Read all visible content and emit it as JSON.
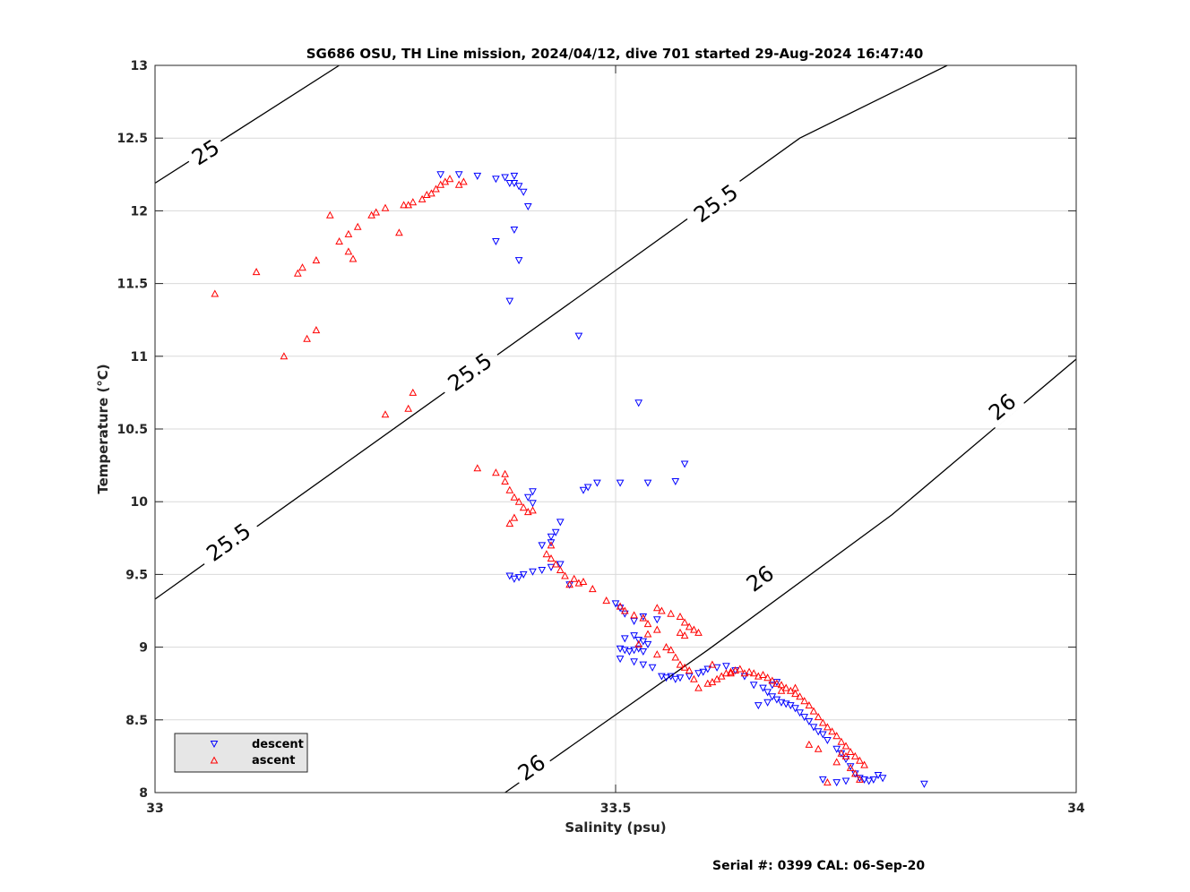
{
  "chart_data": {
    "type": "scatter",
    "title": "SG686 OSU, TH Line mission, 2024/04/12, dive 701 started 29-Aug-2024 16:47:40",
    "xlabel": "Salinity (psu)",
    "ylabel": "Temperature (°C)",
    "xlim": [
      33,
      34
    ],
    "ylim": [
      8,
      13
    ],
    "xticks": [
      33,
      33.5,
      34
    ],
    "xtick_labels": [
      "33",
      "33.5",
      "34"
    ],
    "yticks": [
      8,
      8.5,
      9,
      9.5,
      10,
      10.5,
      11,
      11.5,
      12,
      12.5,
      13
    ],
    "ytick_labels": [
      "8",
      "8.5",
      "9",
      "9.5",
      "10",
      "10.5",
      "11",
      "11.5",
      "12",
      "12.5",
      "13"
    ],
    "grid": true,
    "legend_position": "bottom-left",
    "legend": [
      "descent",
      "ascent"
    ],
    "footer": "Serial #: 0399  CAL: 06-Sep-20",
    "colors": {
      "descent": "#0000ff",
      "ascent": "#ff0000",
      "contour": "#000000",
      "grid": "#d9d9d9"
    },
    "contours": [
      {
        "name": "25",
        "points": [
          [
            33.0,
            12.19
          ],
          [
            33.2,
            13.0
          ]
        ],
        "labels": [
          {
            "text": "25",
            "at": [
              33.055,
              12.4
            ]
          }
        ]
      },
      {
        "name": "25.5",
        "points": [
          [
            33.0,
            9.33
          ],
          [
            33.5,
            11.59
          ],
          [
            33.7,
            12.5
          ],
          [
            33.86,
            13.0
          ]
        ],
        "labels": [
          {
            "text": "25.5",
            "at": [
              33.08,
              9.72
            ]
          },
          {
            "text": "25.5",
            "at": [
              33.342,
              10.89
            ]
          },
          {
            "text": "25.5",
            "at": [
              33.609,
              12.05
            ]
          }
        ]
      },
      {
        "name": "26",
        "points": [
          [
            33.38,
            8.0
          ],
          [
            33.6,
            8.98
          ],
          [
            33.8,
            9.91
          ],
          [
            34.0,
            10.98
          ]
        ],
        "labels": [
          {
            "text": "26",
            "at": [
              33.409,
              8.17
            ]
          },
          {
            "text": "26",
            "at": [
              33.657,
              9.47
            ]
          },
          {
            "text": "26",
            "at": [
              33.92,
              10.65
            ]
          }
        ]
      }
    ],
    "series": [
      {
        "name": "descent",
        "marker": "triangle-down",
        "color": "#0000ff",
        "points": [
          [
            33.31,
            12.25
          ],
          [
            33.33,
            12.25
          ],
          [
            33.35,
            12.24
          ],
          [
            33.37,
            12.22
          ],
          [
            33.38,
            12.23
          ],
          [
            33.39,
            12.24
          ],
          [
            33.385,
            12.19
          ],
          [
            33.39,
            12.19
          ],
          [
            33.395,
            12.17
          ],
          [
            33.4,
            12.13
          ],
          [
            33.405,
            12.03
          ],
          [
            33.39,
            11.87
          ],
          [
            33.395,
            11.66
          ],
          [
            33.37,
            11.79
          ],
          [
            33.385,
            11.38
          ],
          [
            33.46,
            11.14
          ],
          [
            33.525,
            10.68
          ],
          [
            33.575,
            10.26
          ],
          [
            33.565,
            10.14
          ],
          [
            33.535,
            10.13
          ],
          [
            33.505,
            10.13
          ],
          [
            33.48,
            10.13
          ],
          [
            33.47,
            10.1
          ],
          [
            33.465,
            10.08
          ],
          [
            33.41,
            10.07
          ],
          [
            33.405,
            10.03
          ],
          [
            33.41,
            9.99
          ],
          [
            33.44,
            9.86
          ],
          [
            33.435,
            9.79
          ],
          [
            33.43,
            9.76
          ],
          [
            33.43,
            9.72
          ],
          [
            33.42,
            9.7
          ],
          [
            33.44,
            9.57
          ],
          [
            33.43,
            9.55
          ],
          [
            33.42,
            9.53
          ],
          [
            33.41,
            9.52
          ],
          [
            33.4,
            9.5
          ],
          [
            33.395,
            9.48
          ],
          [
            33.385,
            9.49
          ],
          [
            33.39,
            9.47
          ],
          [
            33.45,
            9.43
          ],
          [
            33.5,
            9.3
          ],
          [
            33.505,
            9.27
          ],
          [
            33.51,
            9.23
          ],
          [
            33.52,
            9.18
          ],
          [
            33.53,
            9.21
          ],
          [
            33.545,
            9.19
          ],
          [
            33.51,
            9.06
          ],
          [
            33.52,
            9.08
          ],
          [
            33.525,
            9.05
          ],
          [
            33.53,
            9.04
          ],
          [
            33.535,
            9.02
          ],
          [
            33.505,
            8.99
          ],
          [
            33.51,
            8.98
          ],
          [
            33.515,
            8.97
          ],
          [
            33.52,
            8.98
          ],
          [
            33.525,
            8.99
          ],
          [
            33.53,
            8.97
          ],
          [
            33.505,
            8.92
          ],
          [
            33.52,
            8.9
          ],
          [
            33.53,
            8.88
          ],
          [
            33.54,
            8.86
          ],
          [
            33.55,
            8.8
          ],
          [
            33.555,
            8.79
          ],
          [
            33.56,
            8.8
          ],
          [
            33.565,
            8.78
          ],
          [
            33.57,
            8.79
          ],
          [
            33.58,
            8.8
          ],
          [
            33.59,
            8.82
          ],
          [
            33.6,
            8.85
          ],
          [
            33.61,
            8.86
          ],
          [
            33.62,
            8.87
          ],
          [
            33.63,
            8.84
          ],
          [
            33.64,
            8.8
          ],
          [
            33.65,
            8.74
          ],
          [
            33.66,
            8.72
          ],
          [
            33.665,
            8.69
          ],
          [
            33.67,
            8.66
          ],
          [
            33.675,
            8.64
          ],
          [
            33.68,
            8.62
          ],
          [
            33.685,
            8.61
          ],
          [
            33.69,
            8.6
          ],
          [
            33.695,
            8.58
          ],
          [
            33.7,
            8.55
          ],
          [
            33.705,
            8.52
          ],
          [
            33.71,
            8.49
          ],
          [
            33.715,
            8.45
          ],
          [
            33.72,
            8.42
          ],
          [
            33.725,
            8.4
          ],
          [
            33.73,
            8.36
          ],
          [
            33.74,
            8.3
          ],
          [
            33.745,
            8.27
          ],
          [
            33.75,
            8.23
          ],
          [
            33.755,
            8.18
          ],
          [
            33.76,
            8.13
          ],
          [
            33.765,
            8.1
          ],
          [
            33.77,
            8.09
          ],
          [
            33.775,
            8.08
          ],
          [
            33.78,
            8.09
          ],
          [
            33.785,
            8.12
          ],
          [
            33.79,
            8.1
          ],
          [
            33.74,
            8.07
          ],
          [
            33.75,
            8.08
          ],
          [
            33.725,
            8.09
          ],
          [
            33.835,
            8.06
          ],
          [
            33.655,
            8.6
          ],
          [
            33.665,
            8.62
          ],
          [
            33.67,
            8.74
          ],
          [
            33.675,
            8.76
          ],
          [
            33.595,
            8.83
          ]
        ]
      },
      {
        "name": "ascent",
        "marker": "triangle-up",
        "color": "#ff0000",
        "points": [
          [
            33.065,
            11.43
          ],
          [
            33.11,
            11.58
          ],
          [
            33.155,
            11.57
          ],
          [
            33.16,
            11.61
          ],
          [
            33.175,
            11.66
          ],
          [
            33.19,
            11.97
          ],
          [
            33.2,
            11.79
          ],
          [
            33.21,
            11.72
          ],
          [
            33.215,
            11.67
          ],
          [
            33.21,
            11.84
          ],
          [
            33.22,
            11.89
          ],
          [
            33.235,
            11.97
          ],
          [
            33.24,
            11.99
          ],
          [
            33.25,
            12.02
          ],
          [
            33.265,
            11.85
          ],
          [
            33.27,
            12.04
          ],
          [
            33.275,
            12.04
          ],
          [
            33.28,
            12.06
          ],
          [
            33.29,
            12.08
          ],
          [
            33.295,
            12.11
          ],
          [
            33.3,
            12.12
          ],
          [
            33.305,
            12.15
          ],
          [
            33.31,
            12.18
          ],
          [
            33.315,
            12.2
          ],
          [
            33.32,
            12.22
          ],
          [
            33.33,
            12.18
          ],
          [
            33.335,
            12.2
          ],
          [
            33.14,
            11.0
          ],
          [
            33.165,
            11.12
          ],
          [
            33.175,
            11.18
          ],
          [
            33.25,
            10.6
          ],
          [
            33.275,
            10.64
          ],
          [
            33.28,
            10.75
          ],
          [
            33.35,
            10.23
          ],
          [
            33.37,
            10.2
          ],
          [
            33.38,
            10.19
          ],
          [
            33.38,
            10.14
          ],
          [
            33.385,
            10.08
          ],
          [
            33.39,
            10.03
          ],
          [
            33.395,
            10.0
          ],
          [
            33.4,
            9.96
          ],
          [
            33.405,
            9.93
          ],
          [
            33.41,
            9.94
          ],
          [
            33.39,
            9.89
          ],
          [
            33.385,
            9.85
          ],
          [
            33.43,
            9.7
          ],
          [
            33.425,
            9.64
          ],
          [
            33.43,
            9.61
          ],
          [
            33.435,
            9.57
          ],
          [
            33.44,
            9.53
          ],
          [
            33.445,
            9.49
          ],
          [
            33.455,
            9.47
          ],
          [
            33.46,
            9.44
          ],
          [
            33.45,
            9.43
          ],
          [
            33.465,
            9.45
          ],
          [
            33.475,
            9.4
          ],
          [
            33.49,
            9.32
          ],
          [
            33.505,
            9.28
          ],
          [
            33.51,
            9.25
          ],
          [
            33.52,
            9.22
          ],
          [
            33.53,
            9.2
          ],
          [
            33.535,
            9.16
          ],
          [
            33.545,
            9.12
          ],
          [
            33.535,
            9.09
          ],
          [
            33.55,
            9.25
          ],
          [
            33.56,
            9.23
          ],
          [
            33.57,
            9.21
          ],
          [
            33.575,
            9.17
          ],
          [
            33.58,
            9.14
          ],
          [
            33.57,
            9.1
          ],
          [
            33.575,
            9.08
          ],
          [
            33.585,
            9.12
          ],
          [
            33.59,
            9.1
          ],
          [
            33.56,
            8.98
          ],
          [
            33.565,
            8.93
          ],
          [
            33.57,
            8.88
          ],
          [
            33.575,
            8.86
          ],
          [
            33.58,
            8.84
          ],
          [
            33.585,
            8.78
          ],
          [
            33.59,
            8.72
          ],
          [
            33.6,
            8.75
          ],
          [
            33.605,
            8.76
          ],
          [
            33.61,
            8.78
          ],
          [
            33.615,
            8.8
          ],
          [
            33.62,
            8.82
          ],
          [
            33.625,
            8.83
          ],
          [
            33.63,
            8.84
          ],
          [
            33.64,
            8.82
          ],
          [
            33.645,
            8.83
          ],
          [
            33.65,
            8.82
          ],
          [
            33.66,
            8.81
          ],
          [
            33.665,
            8.79
          ],
          [
            33.67,
            8.77
          ],
          [
            33.675,
            8.75
          ],
          [
            33.68,
            8.74
          ],
          [
            33.685,
            8.72
          ],
          [
            33.69,
            8.7
          ],
          [
            33.695,
            8.68
          ],
          [
            33.7,
            8.66
          ],
          [
            33.705,
            8.63
          ],
          [
            33.71,
            8.6
          ],
          [
            33.715,
            8.56
          ],
          [
            33.72,
            8.52
          ],
          [
            33.725,
            8.48
          ],
          [
            33.73,
            8.45
          ],
          [
            33.735,
            8.42
          ],
          [
            33.74,
            8.39
          ],
          [
            33.745,
            8.35
          ],
          [
            33.75,
            8.32
          ],
          [
            33.755,
            8.28
          ],
          [
            33.76,
            8.25
          ],
          [
            33.765,
            8.22
          ],
          [
            33.77,
            8.19
          ],
          [
            33.74,
            8.21
          ],
          [
            33.745,
            8.27
          ],
          [
            33.75,
            8.25
          ],
          [
            33.755,
            8.17
          ],
          [
            33.76,
            8.13
          ],
          [
            33.765,
            8.09
          ],
          [
            33.73,
            8.07
          ],
          [
            33.72,
            8.3
          ],
          [
            33.71,
            8.33
          ],
          [
            33.605,
            8.88
          ],
          [
            33.625,
            8.82
          ],
          [
            33.635,
            8.85
          ],
          [
            33.68,
            8.7
          ],
          [
            33.695,
            8.72
          ],
          [
            33.655,
            8.8
          ],
          [
            33.545,
            8.95
          ],
          [
            33.555,
            9.0
          ],
          [
            33.525,
            9.02
          ],
          [
            33.545,
            9.27
          ]
        ]
      }
    ]
  }
}
